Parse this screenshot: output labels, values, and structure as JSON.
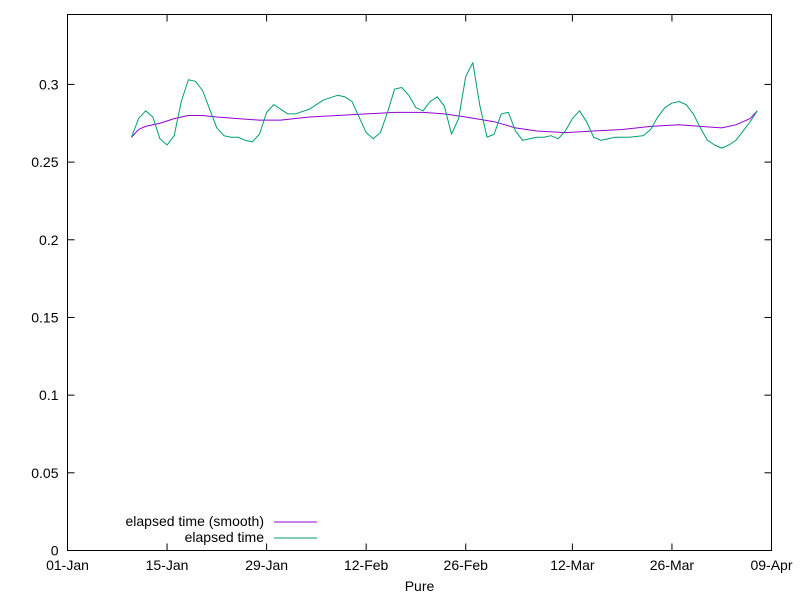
{
  "chart_data": {
    "type": "line",
    "title": "",
    "xlabel": "Pure",
    "ylabel": "",
    "x_ticks": [
      "01-Jan",
      "15-Jan",
      "29-Jan",
      "12-Feb",
      "26-Feb",
      "12-Mar",
      "26-Mar",
      "09-Apr"
    ],
    "y_ticks": [
      "0",
      "0.05",
      "0.1",
      "0.15",
      "0.2",
      "0.25",
      "0.3"
    ],
    "xlim": [
      "01-Jan",
      "09-Apr"
    ],
    "ylim": [
      0,
      0.345
    ],
    "grid": false,
    "legend_position": "bottom-left",
    "series": [
      {
        "name": "elapsed time (smooth)",
        "color": "#9400d3",
        "points": [
          [
            "10-Jan",
            0.266
          ],
          [
            "11-Jan",
            0.271
          ],
          [
            "12-Jan",
            0.273
          ],
          [
            "14-Jan",
            0.275
          ],
          [
            "16-Jan",
            0.278
          ],
          [
            "18-Jan",
            0.28
          ],
          [
            "20-Jan",
            0.28
          ],
          [
            "22-Jan",
            0.279
          ],
          [
            "25-Jan",
            0.278
          ],
          [
            "28-Jan",
            0.277
          ],
          [
            "31-Jan",
            0.277
          ],
          [
            "04-Feb",
            0.279
          ],
          [
            "08-Feb",
            0.28
          ],
          [
            "12-Feb",
            0.281
          ],
          [
            "16-Feb",
            0.282
          ],
          [
            "20-Feb",
            0.282
          ],
          [
            "23-Feb",
            0.281
          ],
          [
            "26-Feb",
            0.279
          ],
          [
            "01-Mar",
            0.276
          ],
          [
            "04-Mar",
            0.272
          ],
          [
            "07-Mar",
            0.27
          ],
          [
            "11-Mar",
            0.269
          ],
          [
            "15-Mar",
            0.27
          ],
          [
            "19-Mar",
            0.271
          ],
          [
            "23-Mar",
            0.273
          ],
          [
            "27-Mar",
            0.274
          ],
          [
            "30-Mar",
            0.273
          ],
          [
            "02-Apr",
            0.272
          ],
          [
            "04-Apr",
            0.274
          ],
          [
            "06-Apr",
            0.278
          ],
          [
            "07-Apr",
            0.283
          ]
        ]
      },
      {
        "name": "elapsed time",
        "color": "#009e73",
        "points": [
          [
            "10-Jan",
            0.266
          ],
          [
            "11-Jan",
            0.278
          ],
          [
            "12-Jan",
            0.283
          ],
          [
            "13-Jan",
            0.279
          ],
          [
            "14-Jan",
            0.265
          ],
          [
            "15-Jan",
            0.261
          ],
          [
            "16-Jan",
            0.267
          ],
          [
            "17-Jan",
            0.289
          ],
          [
            "18-Jan",
            0.303
          ],
          [
            "19-Jan",
            0.302
          ],
          [
            "20-Jan",
            0.296
          ],
          [
            "21-Jan",
            0.284
          ],
          [
            "22-Jan",
            0.272
          ],
          [
            "23-Jan",
            0.267
          ],
          [
            "24-Jan",
            0.266
          ],
          [
            "25-Jan",
            0.266
          ],
          [
            "26-Jan",
            0.264
          ],
          [
            "27-Jan",
            0.263
          ],
          [
            "28-Jan",
            0.268
          ],
          [
            "29-Jan",
            0.282
          ],
          [
            "30-Jan",
            0.287
          ],
          [
            "31-Jan",
            0.284
          ],
          [
            "01-Feb",
            0.281
          ],
          [
            "02-Feb",
            0.281
          ],
          [
            "04-Feb",
            0.284
          ],
          [
            "06-Feb",
            0.29
          ],
          [
            "08-Feb",
            0.293
          ],
          [
            "09-Feb",
            0.292
          ],
          [
            "10-Feb",
            0.289
          ],
          [
            "11-Feb",
            0.279
          ],
          [
            "12-Feb",
            0.269
          ],
          [
            "13-Feb",
            0.265
          ],
          [
            "14-Feb",
            0.269
          ],
          [
            "15-Feb",
            0.282
          ],
          [
            "16-Feb",
            0.297
          ],
          [
            "17-Feb",
            0.298
          ],
          [
            "18-Feb",
            0.293
          ],
          [
            "19-Feb",
            0.285
          ],
          [
            "20-Feb",
            0.283
          ],
          [
            "21-Feb",
            0.289
          ],
          [
            "22-Feb",
            0.292
          ],
          [
            "23-Feb",
            0.286
          ],
          [
            "24-Feb",
            0.268
          ],
          [
            "25-Feb",
            0.278
          ],
          [
            "26-Feb",
            0.305
          ],
          [
            "27-Feb",
            0.314
          ],
          [
            "28-Feb",
            0.286
          ],
          [
            "29-Feb",
            0.266
          ],
          [
            "01-Mar",
            0.268
          ],
          [
            "02-Mar",
            0.281
          ],
          [
            "03-Mar",
            0.282
          ],
          [
            "04-Mar",
            0.27
          ],
          [
            "05-Mar",
            0.264
          ],
          [
            "06-Mar",
            0.265
          ],
          [
            "07-Mar",
            0.266
          ],
          [
            "08-Mar",
            0.266
          ],
          [
            "09-Mar",
            0.267
          ],
          [
            "10-Mar",
            0.265
          ],
          [
            "11-Mar",
            0.27
          ],
          [
            "12-Mar",
            0.278
          ],
          [
            "13-Mar",
            0.283
          ],
          [
            "14-Mar",
            0.276
          ],
          [
            "15-Mar",
            0.266
          ],
          [
            "16-Mar",
            0.264
          ],
          [
            "18-Mar",
            0.266
          ],
          [
            "20-Mar",
            0.266
          ],
          [
            "22-Mar",
            0.267
          ],
          [
            "23-Mar",
            0.271
          ],
          [
            "24-Mar",
            0.279
          ],
          [
            "25-Mar",
            0.285
          ],
          [
            "26-Mar",
            0.288
          ],
          [
            "27-Mar",
            0.289
          ],
          [
            "28-Mar",
            0.287
          ],
          [
            "29-Mar",
            0.281
          ],
          [
            "30-Mar",
            0.272
          ],
          [
            "31-Mar",
            0.264
          ],
          [
            "01-Apr",
            0.261
          ],
          [
            "02-Apr",
            0.259
          ],
          [
            "03-Apr",
            0.261
          ],
          [
            "04-Apr",
            0.264
          ],
          [
            "05-Apr",
            0.27
          ],
          [
            "06-Apr",
            0.276
          ],
          [
            "07-Apr",
            0.283
          ]
        ]
      }
    ]
  }
}
